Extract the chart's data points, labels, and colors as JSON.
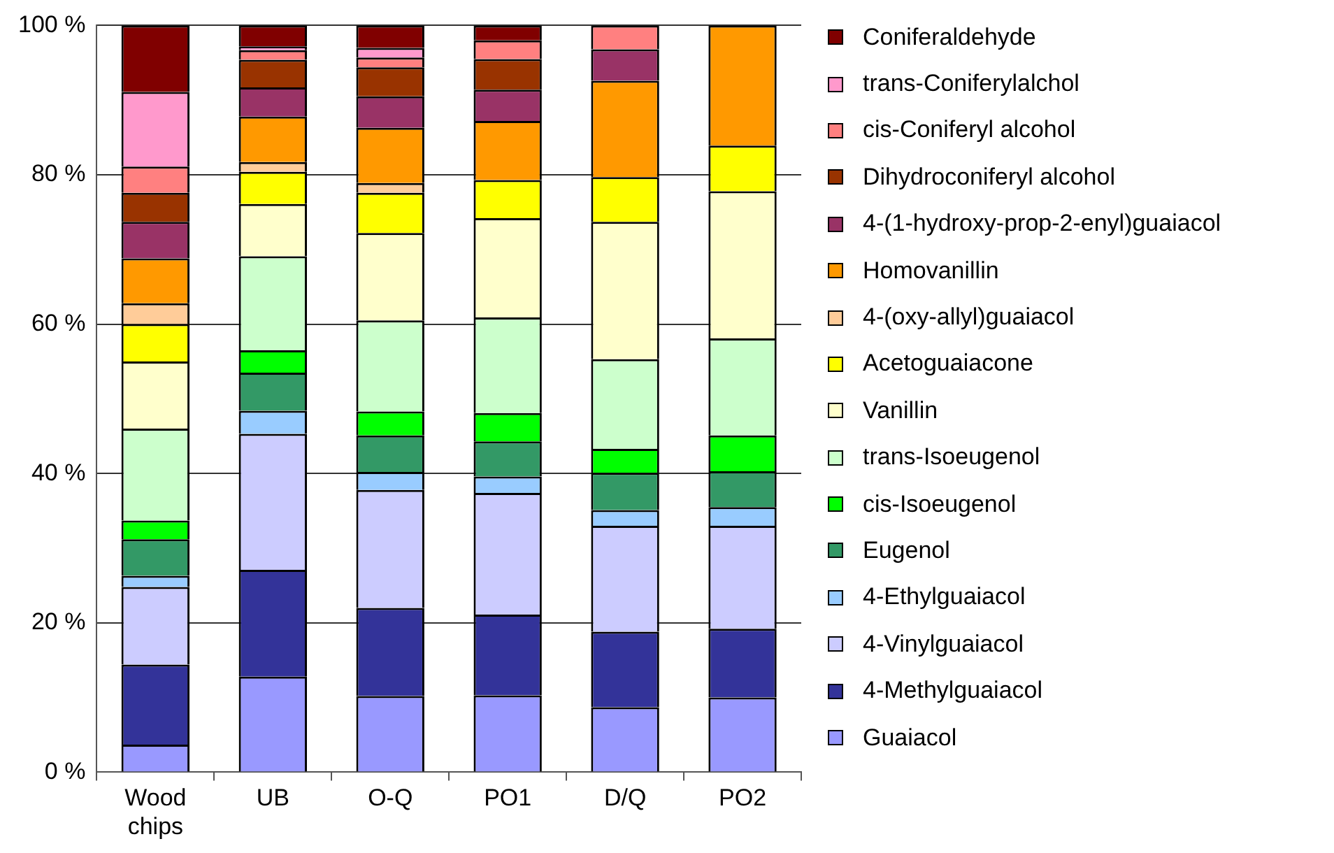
{
  "chart_data": {
    "type": "bar",
    "stacked": true,
    "categories": [
      "Wood chips",
      "UB",
      "O-Q",
      "PO1",
      "D/Q",
      "PO2"
    ],
    "ylim": [
      0,
      100
    ],
    "yticks": [
      {
        "value": 0,
        "label": "0 %"
      },
      {
        "value": 20,
        "label": "20 %"
      },
      {
        "value": 40,
        "label": "40 %"
      },
      {
        "value": 60,
        "label": "60 %"
      },
      {
        "value": 80,
        "label": "80 %"
      },
      {
        "value": 100,
        "label": "100 %"
      }
    ],
    "grid": "y",
    "legend": "right",
    "series": [
      {
        "name": "Guaiacol",
        "color": "#9999ff",
        "values": [
          3.7,
          12.8,
          10.2,
          10.3,
          8.7,
          10.0
        ]
      },
      {
        "name": "4-Methylguaiacol",
        "color": "#333399",
        "values": [
          10.7,
          14.3,
          11.8,
          10.8,
          10.1,
          9.2
        ]
      },
      {
        "name": "4-Vinylguaiacol",
        "color": "#ccccff",
        "values": [
          10.4,
          18.2,
          15.8,
          16.3,
          14.2,
          13.8
        ]
      },
      {
        "name": "4-Ethylguaiacol",
        "color": "#99ccff",
        "values": [
          1.5,
          3.1,
          2.4,
          2.2,
          2.1,
          2.5
        ]
      },
      {
        "name": "Eugenol",
        "color": "#339966",
        "values": [
          4.9,
          5.1,
          4.9,
          4.7,
          5.0,
          4.8
        ]
      },
      {
        "name": "cis-Isoeugenol",
        "color": "#00ff00",
        "values": [
          2.5,
          3.0,
          3.2,
          3.8,
          3.2,
          4.8
        ]
      },
      {
        "name": "trans-Isoeugenol",
        "color": "#ccffcc",
        "values": [
          12.3,
          12.6,
          12.2,
          12.8,
          12.0,
          13.0
        ]
      },
      {
        "name": "Vanillin",
        "color": "#ffffcc",
        "values": [
          9.0,
          7.0,
          11.7,
          13.3,
          18.4,
          19.7
        ]
      },
      {
        "name": "Acetoguaiacone",
        "color": "#ffff00",
        "values": [
          5.0,
          4.3,
          5.4,
          5.1,
          6.0,
          6.1
        ]
      },
      {
        "name": "4-(oxy-allyl)guaiacol",
        "color": "#ffcc99",
        "values": [
          2.8,
          1.3,
          1.3,
          0,
          0,
          0
        ]
      },
      {
        "name": "Homovanillin",
        "color": "#ff9900",
        "values": [
          6.0,
          6.1,
          7.4,
          7.9,
          12.9,
          16.1
        ]
      },
      {
        "name": "4-(1-hydroxy-prop-2-enyl)guaiacol",
        "color": "#993366",
        "values": [
          4.9,
          3.9,
          4.2,
          4.2,
          4.2,
          0
        ]
      },
      {
        "name": "Dihydroconiferyl alcohol",
        "color": "#993300",
        "values": [
          3.9,
          3.7,
          3.9,
          4.1,
          0,
          0
        ]
      },
      {
        "name": "cis-Coniferyl alcohol",
        "color": "#ff8080",
        "values": [
          3.5,
          1.3,
          1.3,
          2.5,
          3.2,
          0
        ]
      },
      {
        "name": "trans-Coniferylalchol",
        "color": "#ff99cc",
        "values": [
          10.0,
          0.5,
          1.3,
          0,
          0,
          0
        ]
      },
      {
        "name": "Coniferaldehyde",
        "color": "#800000",
        "values": [
          8.9,
          2.8,
          3.0,
          2.0,
          0,
          0
        ]
      }
    ]
  }
}
